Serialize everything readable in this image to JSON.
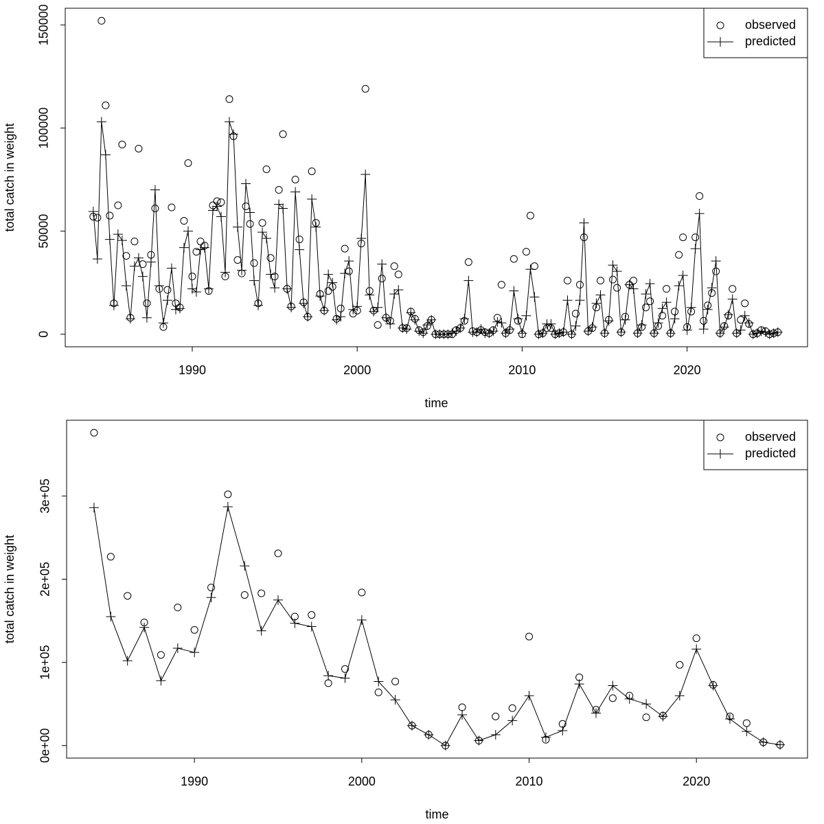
{
  "chart_data": [
    {
      "type": "line",
      "xlabel": "time",
      "ylabel": "total catch in weight",
      "legend": "topright",
      "x": [
        1984,
        1984.25,
        1984.5,
        1984.75,
        1985,
        1985.25,
        1985.5,
        1985.75,
        1986,
        1986.25,
        1986.5,
        1986.75,
        1987,
        1987.25,
        1987.5,
        1987.75,
        1988,
        1988.25,
        1988.5,
        1988.75,
        1989,
        1989.25,
        1989.5,
        1989.75,
        1990,
        1990.25,
        1990.5,
        1990.75,
        1991,
        1991.25,
        1991.5,
        1991.75,
        1992,
        1992.25,
        1992.5,
        1992.75,
        1993,
        1993.25,
        1993.5,
        1993.75,
        1994,
        1994.25,
        1994.5,
        1994.75,
        1995,
        1995.25,
        1995.5,
        1995.75,
        1996,
        1996.25,
        1996.5,
        1996.75,
        1997,
        1997.25,
        1997.5,
        1997.75,
        1998,
        1998.25,
        1998.5,
        1998.75,
        1999,
        1999.25,
        1999.5,
        1999.75,
        2000,
        2000.25,
        2000.5,
        2000.75,
        2001,
        2001.25,
        2001.5,
        2001.75,
        2002,
        2002.25,
        2002.5,
        2002.75,
        2003,
        2003.25,
        2003.5,
        2003.75,
        2004,
        2004.25,
        2004.5,
        2004.75,
        2005,
        2005.25,
        2005.5,
        2005.75,
        2006,
        2006.25,
        2006.5,
        2006.75,
        2007,
        2007.25,
        2007.5,
        2007.75,
        2008,
        2008.25,
        2008.5,
        2008.75,
        2009,
        2009.25,
        2009.5,
        2009.75,
        2010,
        2010.25,
        2010.5,
        2010.75,
        2011,
        2011.25,
        2011.5,
        2011.75,
        2012,
        2012.25,
        2012.5,
        2012.75,
        2013,
        2013.25,
        2013.5,
        2013.75,
        2014,
        2014.25,
        2014.5,
        2014.75,
        2015,
        2015.25,
        2015.5,
        2015.75,
        2016,
        2016.25,
        2016.5,
        2016.75,
        2017,
        2017.25,
        2017.5,
        2017.75,
        2018,
        2018.25,
        2018.5,
        2018.75,
        2019,
        2019.25,
        2019.5,
        2019.75,
        2020,
        2020.25,
        2020.5,
        2020.75,
        2021,
        2021.25,
        2021.5,
        2021.75,
        2022,
        2022.25,
        2022.5,
        2022.75,
        2023,
        2023.25,
        2023.5,
        2023.75,
        2024,
        2024.25,
        2024.5,
        2024.75,
        2025,
        2025.25,
        2025.5
      ],
      "xlim": [
        1982.3,
        2027.3
      ],
      "ylim": [
        -6080,
        158080
      ],
      "xticks": [
        1990,
        2000,
        2010,
        2020
      ],
      "yticks": [
        0,
        50000,
        100000,
        150000
      ],
      "series": [
        {
          "name": "observed",
          "color": "#000000",
          "marker": "circle",
          "line": false,
          "values": [
            57000,
            56500,
            152000,
            111000,
            57500,
            15000,
            62500,
            92000,
            38000,
            8000,
            45000,
            90000,
            34000,
            15000,
            38500,
            61000,
            22000,
            3500,
            21500,
            61500,
            15000,
            13000,
            55000,
            83000,
            28000,
            40000,
            45000,
            43000,
            21000,
            62500,
            64500,
            64000,
            28000,
            114000,
            96000,
            36000,
            29500,
            62000,
            53500,
            34500,
            15000,
            54000,
            80000,
            37000,
            28000,
            70000,
            97000,
            22000,
            13500,
            75000,
            46000,
            15500,
            8500,
            79000,
            54000,
            19500,
            11500,
            21000,
            23000,
            7500,
            12500,
            41500,
            30500,
            10000,
            11500,
            44000,
            119000,
            21000,
            11500,
            4500,
            27000,
            8000,
            6500,
            33000,
            29000,
            3000,
            3000,
            11000,
            7500,
            2000,
            1000,
            4000,
            7000,
            0,
            0,
            0,
            0,
            0,
            2000,
            3000,
            6500,
            35000,
            1500,
            1000,
            2000,
            1000,
            500,
            2000,
            8000,
            24000,
            500,
            2000,
            36500,
            6500,
            0,
            40000,
            57500,
            33000,
            0,
            500,
            3000,
            3000,
            0,
            500,
            1000,
            26000,
            0,
            10000,
            24000,
            47000,
            1500,
            3000,
            13000,
            26000,
            500,
            7000,
            26500,
            22500,
            1000,
            8500,
            24000,
            26000,
            500,
            3500,
            13000,
            16000,
            500,
            4000,
            9000,
            22000,
            500,
            11000,
            38500,
            47000,
            3500,
            11000,
            47000,
            67000,
            6500,
            14000,
            20000,
            30500,
            500,
            4000,
            9000,
            22000,
            500,
            7000,
            15000,
            5000,
            0,
            500,
            2000,
            1500,
            0,
            500,
            1000
          ]
        },
        {
          "name": "predicted",
          "color": "#000000",
          "marker": "plus",
          "line": true,
          "values": [
            59500,
            36500,
            103000,
            87000,
            46000,
            14000,
            48500,
            45500,
            23500,
            7500,
            33000,
            37000,
            28000,
            8000,
            35000,
            70000,
            23500,
            5500,
            16500,
            32000,
            12000,
            12500,
            42000,
            50000,
            22000,
            20500,
            41000,
            42000,
            22000,
            60000,
            62000,
            57000,
            30000,
            103000,
            97000,
            52000,
            31000,
            73000,
            59000,
            26000,
            14000,
            49500,
            46500,
            29000,
            22500,
            63000,
            61000,
            22000,
            13000,
            69000,
            41000,
            15000,
            8500,
            65500,
            52000,
            18500,
            11500,
            29000,
            25000,
            7000,
            8500,
            29500,
            35500,
            12000,
            13500,
            46500,
            77500,
            19000,
            11000,
            13000,
            34000,
            8000,
            5000,
            19500,
            21500,
            3000,
            2500,
            10500,
            7000,
            1500,
            500,
            4500,
            7000,
            0,
            0,
            0,
            0,
            500,
            1500,
            3000,
            7500,
            26000,
            1000,
            1000,
            2500,
            500,
            500,
            1500,
            6000,
            5500,
            500,
            2500,
            21000,
            7500,
            500,
            9000,
            31500,
            18000,
            0,
            500,
            5000,
            5000,
            0,
            500,
            1000,
            16500,
            0,
            4000,
            16500,
            54000,
            1500,
            3500,
            15000,
            19000,
            500,
            6500,
            33500,
            30500,
            1000,
            7000,
            24000,
            22000,
            500,
            4500,
            19500,
            24500,
            500,
            5500,
            12500,
            15500,
            500,
            7500,
            23500,
            28500,
            2000,
            13000,
            41500,
            58500,
            2500,
            12000,
            22500,
            35500,
            500,
            3500,
            9500,
            17000,
            500,
            2000,
            9000,
            5500,
            0,
            500,
            1500,
            1000,
            0,
            500,
            1000
          ]
        }
      ]
    },
    {
      "type": "line",
      "xlabel": "time",
      "ylabel": "total catch in weight",
      "legend": "topright",
      "x": [
        1984,
        1985,
        1986,
        1987,
        1988,
        1989,
        1990,
        1991,
        1992,
        1993,
        1994,
        1995,
        1996,
        1997,
        1998,
        1999,
        2000,
        2001,
        2002,
        2003,
        2004,
        2005,
        2006,
        2007,
        2008,
        2009,
        2010,
        2011,
        2012,
        2013,
        2014,
        2015,
        2016,
        2017,
        2018,
        2019,
        2020,
        2021,
        2022,
        2023,
        2024,
        2025
      ],
      "xlim": [
        1982.36,
        2026.64
      ],
      "ylim": [
        -15040,
        391040
      ],
      "xticks": [
        1990,
        2000,
        2010,
        2020
      ],
      "yticks": [
        {
          "value": 0,
          "label": "0e+00"
        },
        {
          "value": 100000,
          "label": "1e+05"
        },
        {
          "value": 200000,
          "label": "2e+05"
        },
        {
          "value": 300000,
          "label": "3e+05"
        }
      ],
      "series": [
        {
          "name": "observed",
          "color": "#000000",
          "marker": "circle",
          "line": false,
          "values": [
            376000,
            227000,
            180000,
            148000,
            109000,
            166000,
            139000,
            190000,
            302000,
            181000,
            183000,
            231000,
            155000,
            157000,
            75000,
            92000,
            184000,
            64000,
            77000,
            24000,
            13000,
            0,
            46000,
            6000,
            35000,
            45000,
            131000,
            7000,
            26000,
            82000,
            43000,
            57000,
            60000,
            34000,
            36000,
            97000,
            129000,
            73000,
            35000,
            27000,
            4000,
            1000
          ]
        },
        {
          "name": "predicted",
          "color": "#000000",
          "marker": "plus",
          "line": true,
          "values": [
            286000,
            155000,
            102000,
            142000,
            78000,
            117000,
            112000,
            178000,
            287000,
            216000,
            138000,
            175000,
            147000,
            143000,
            84000,
            81000,
            151000,
            77000,
            55000,
            24000,
            13000,
            0,
            37000,
            6000,
            13000,
            30000,
            60000,
            10000,
            18000,
            74000,
            39000,
            72000,
            56000,
            50000,
            35000,
            60000,
            116000,
            72000,
            32000,
            17000,
            4000,
            1000
          ]
        }
      ]
    }
  ]
}
